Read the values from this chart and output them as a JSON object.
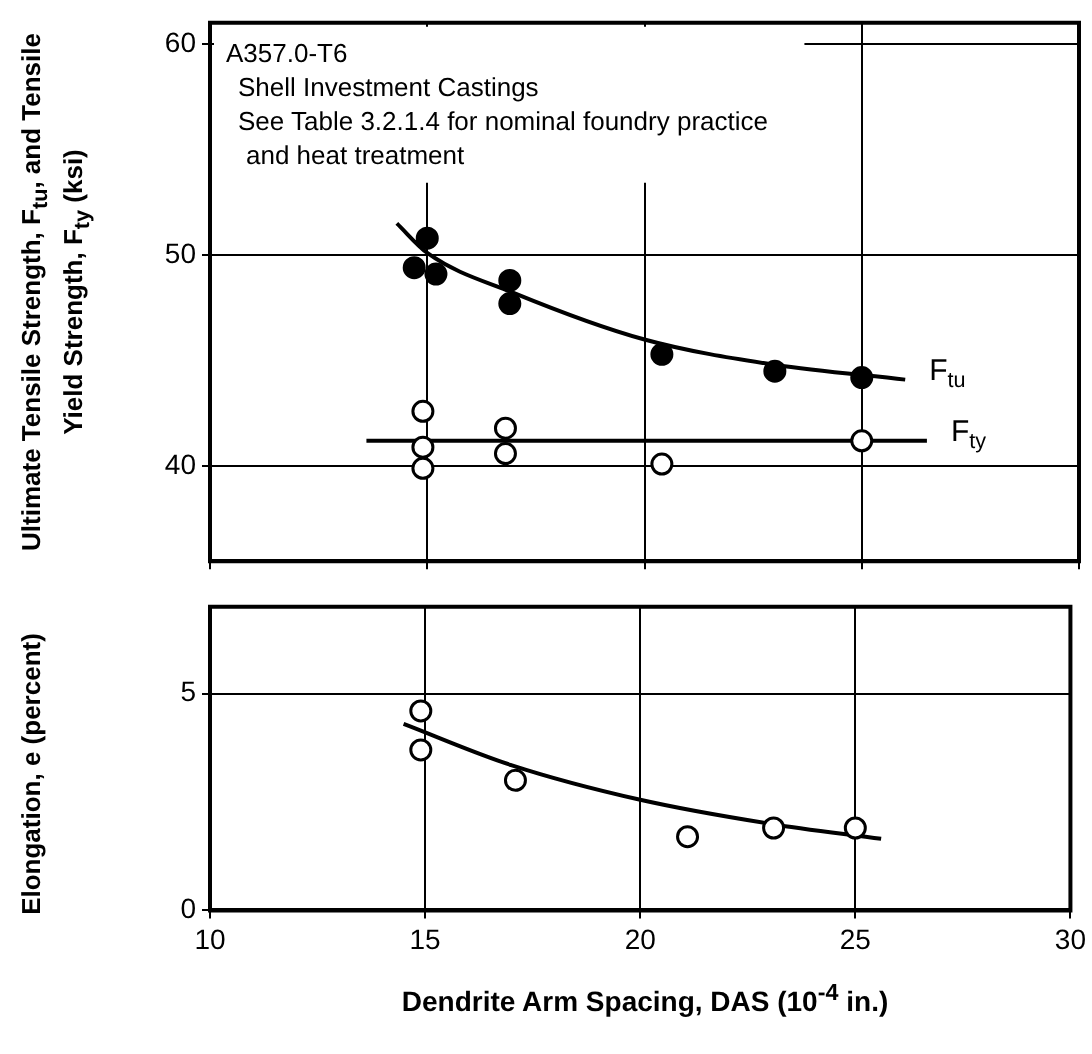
{
  "chart_data": [
    {
      "type": "scatter",
      "ylabel": "Ultimate Tensile Strength, F$_{tu}$, and Tensile Yield Strength, F$_{ty}$ (ksi)",
      "annotations": [
        "A357.0-T6",
        "Shell Investment Castings",
        "See Table 3.2.1.4 for nominal foundry practice",
        "and heat treatment"
      ],
      "xlim": [
        10,
        30
      ],
      "xticks": [
        10,
        15,
        20,
        25,
        30
      ],
      "ylim": [
        35.5,
        61
      ],
      "yticks": [
        40,
        50,
        60
      ],
      "grid": true,
      "tick_labels": "y",
      "series": [
        {
          "color": "#000000",
          "marker": "circle",
          "x": [
            15,
            14.7,
            15.2,
            16.9,
            16.9,
            20.4,
            23,
            25
          ],
          "values": [
            50.8,
            49.4,
            49.1,
            48.8,
            47.7,
            45.3,
            44.5,
            44.2
          ]
        },
        {
          "type": "line",
          "name": "F$_{tu}$",
          "color": "#000000",
          "marker": "none",
          "x": [
            14.3,
            15,
            17,
            20,
            23,
            26
          ],
          "values": [
            51.5,
            50.1,
            48.2,
            46.0,
            44.8,
            44.1
          ]
        },
        {
          "color": "#ffffff",
          "marker": "circle",
          "x": [
            14.9,
            14.9,
            14.9,
            16.8,
            16.8,
            20.4,
            25
          ],
          "values": [
            42.6,
            40.9,
            39.9,
            41.8,
            40.6,
            40.1,
            41.2
          ]
        },
        {
          "type": "line",
          "name": "F$_{ty}$",
          "color": "#000000",
          "marker": "none",
          "x": [
            13.6,
            26.5
          ],
          "values": [
            41.2,
            41.2
          ]
        }
      ]
    },
    {
      "type": "scatter",
      "xlabel": "Dendrite Arm Spacing, DAS (10$^{-4}$ in.)",
      "ylabel": "Elongation, e (percent)",
      "xlim": [
        10,
        30
      ],
      "xticks": [
        10,
        15,
        20,
        25,
        30
      ],
      "ylim": [
        0,
        7
      ],
      "yticks": [
        0,
        5
      ],
      "grid": true,
      "series": [
        {
          "color": "#ffffff",
          "marker": "circle",
          "x": [
            14.9,
            14.9,
            17.1,
            21.1,
            23.1,
            25
          ],
          "values": [
            4.6,
            3.7,
            3.0,
            1.7,
            1.9,
            1.9
          ]
        },
        {
          "type": "line",
          "color": "#000000",
          "marker": "none",
          "x": [
            14.5,
            17,
            20,
            23,
            25.6
          ],
          "values": [
            4.3,
            3.35,
            2.55,
            2.0,
            1.65
          ]
        }
      ]
    }
  ]
}
